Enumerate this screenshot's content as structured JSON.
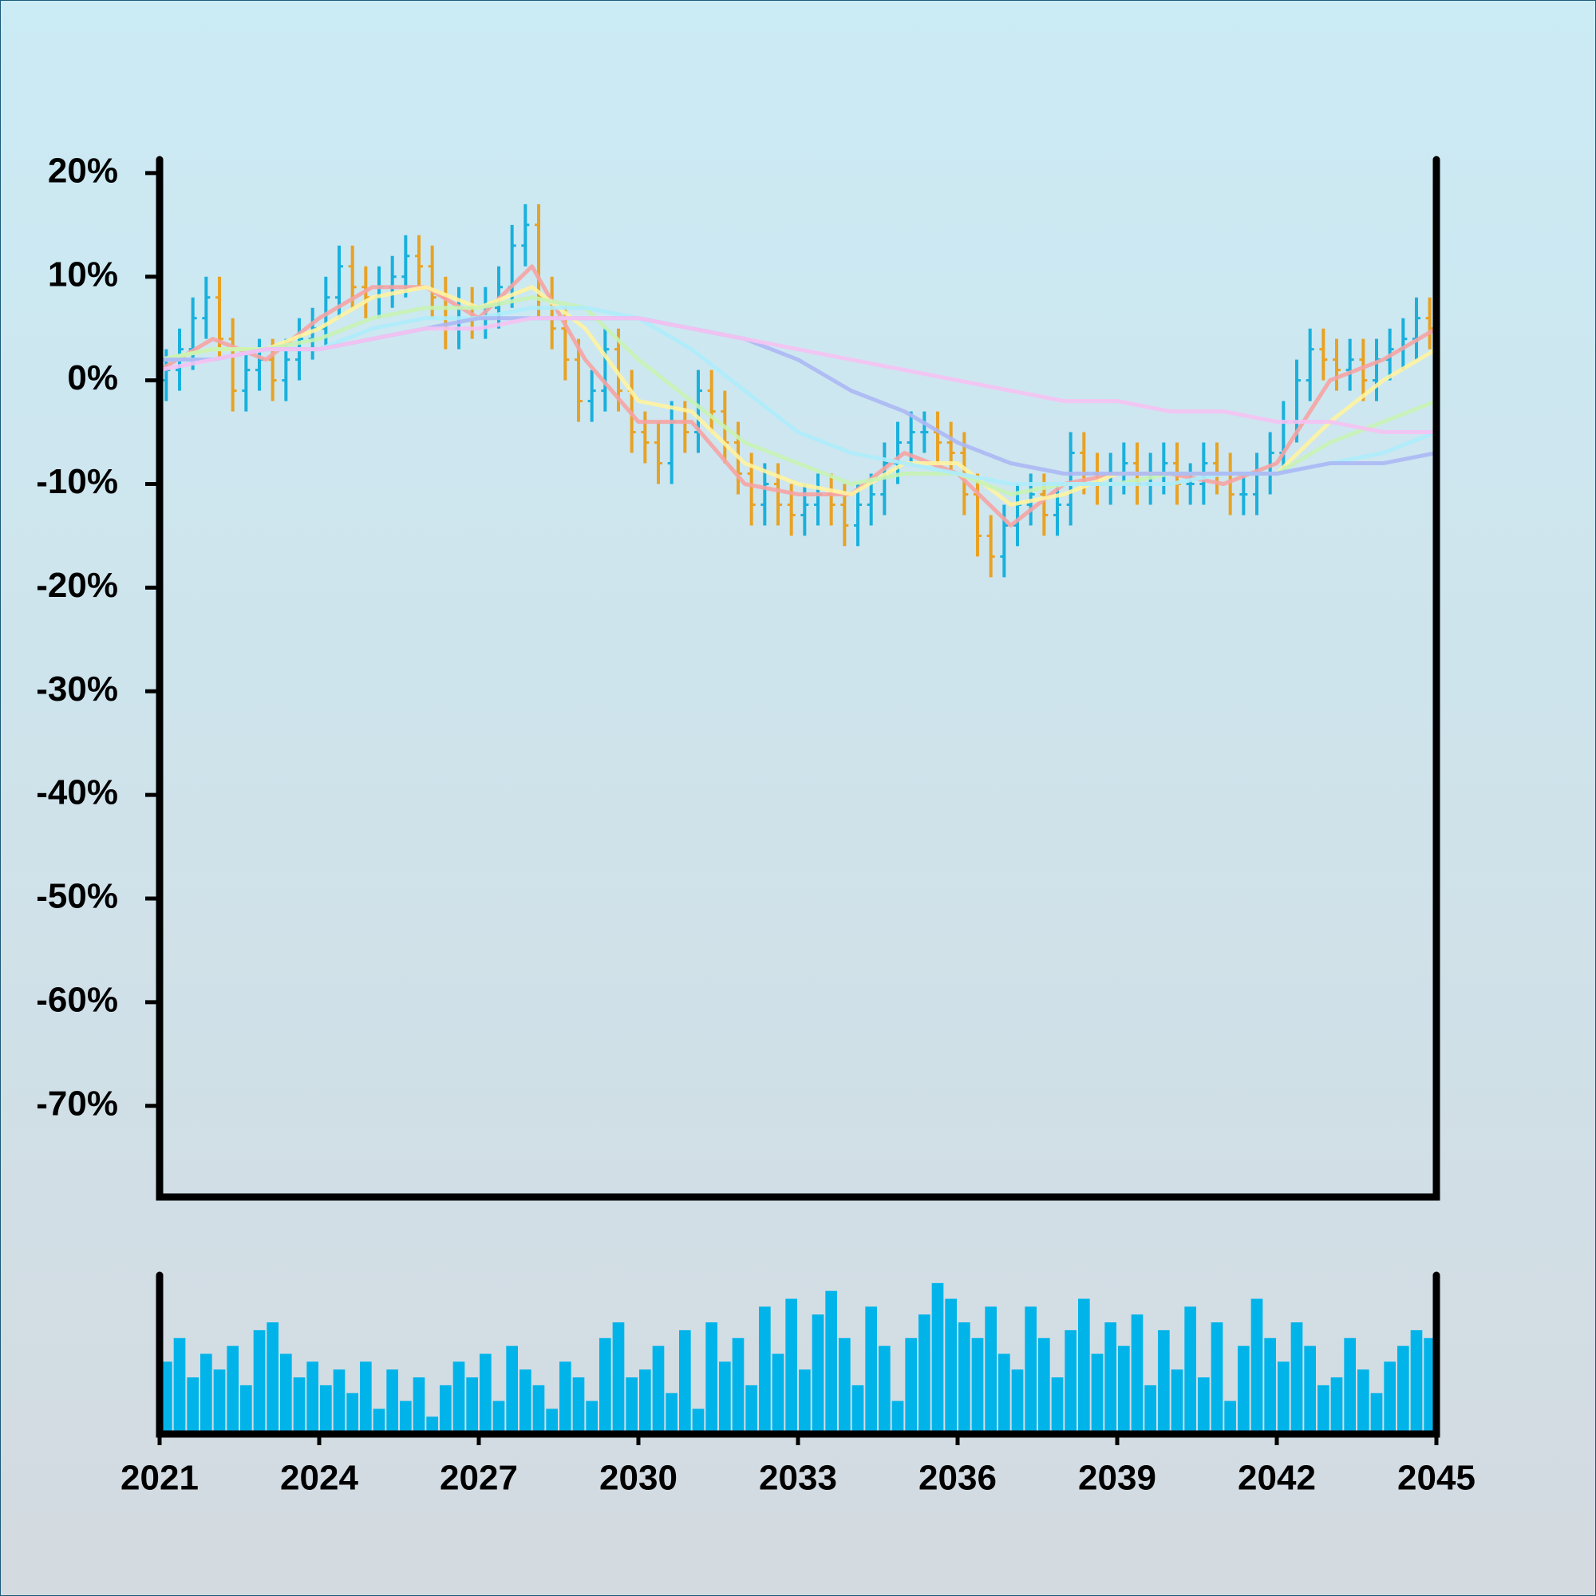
{
  "chart_data": {
    "type": "ohlc",
    "xlim": [
      2021,
      2045
    ],
    "xticks": [
      2021,
      2024,
      2027,
      2030,
      2033,
      2036,
      2039,
      2042,
      2045
    ],
    "ylim": [
      -78.8,
      21.3
    ],
    "yticks": [
      {
        "value": 20,
        "label": "20%"
      },
      {
        "value": 10,
        "label": "10%"
      },
      {
        "value": 0,
        "label": "0%"
      },
      {
        "value": -10,
        "label": "-10%"
      },
      {
        "value": -20,
        "label": "-20%"
      },
      {
        "value": -30,
        "label": "-30%"
      },
      {
        "value": -40,
        "label": "-40%"
      },
      {
        "value": -50,
        "label": "-50%"
      },
      {
        "value": -60,
        "label": "-60%"
      },
      {
        "value": -70,
        "label": "-70%"
      }
    ],
    "up_color": "#19b0dc",
    "down_color": "#e8a224",
    "volume_color": "#00b4ea",
    "volume_ylim": [
      0,
      100
    ],
    "x": [
      2021,
      2021.25,
      2021.5,
      2021.75,
      2022,
      2022.25,
      2022.5,
      2022.75,
      2023,
      2023.25,
      2023.5,
      2023.75,
      2024,
      2024.25,
      2024.5,
      2024.75,
      2025,
      2025.25,
      2025.5,
      2025.75,
      2026,
      2026.25,
      2026.5,
      2026.75,
      2027,
      2027.25,
      2027.5,
      2027.75,
      2028,
      2028.25,
      2028.5,
      2028.75,
      2029,
      2029.25,
      2029.5,
      2029.75,
      2030,
      2030.25,
      2030.5,
      2030.75,
      2031,
      2031.25,
      2031.5,
      2031.75,
      2032,
      2032.25,
      2032.5,
      2032.75,
      2033,
      2033.25,
      2033.5,
      2033.75,
      2034,
      2034.25,
      2034.5,
      2034.75,
      2035,
      2035.25,
      2035.5,
      2035.75,
      2036,
      2036.25,
      2036.5,
      2036.75,
      2037,
      2037.25,
      2037.5,
      2037.75,
      2038,
      2038.25,
      2038.5,
      2038.75,
      2039,
      2039.25,
      2039.5,
      2039.75,
      2040,
      2040.25,
      2040.5,
      2040.75,
      2041,
      2041.25,
      2041.5,
      2041.75,
      2042,
      2042.25,
      2042.5,
      2042.75,
      2043,
      2043.25,
      2043.5,
      2043.75,
      2044,
      2044.25,
      2044.5,
      2044.75
    ],
    "open": [
      0,
      1,
      3,
      6,
      8,
      4,
      -1,
      1,
      2,
      0,
      2,
      4,
      5,
      8,
      11,
      9,
      8,
      9,
      10,
      12,
      11,
      8,
      5,
      7,
      6,
      7,
      9,
      13,
      15,
      8,
      5,
      2,
      -2,
      -1,
      3,
      -1,
      -5,
      -6,
      -8,
      -4,
      -5,
      -1,
      -3,
      -6,
      -9,
      -12,
      -10,
      -12,
      -13,
      -12,
      -11,
      -12,
      -14,
      -12,
      -11,
      -8,
      -6,
      -5,
      -5,
      -6,
      -7,
      -11,
      -15,
      -17,
      -14,
      -12,
      -11,
      -13,
      -12,
      -7,
      -9,
      -10,
      -9,
      -8,
      -10,
      -9,
      -8,
      -10,
      -10,
      -8,
      -9,
      -11,
      -11,
      -9,
      -7,
      -4,
      0,
      3,
      2,
      1,
      2,
      0,
      2,
      3,
      4,
      6
    ],
    "high": [
      3,
      5,
      8,
      10,
      10,
      6,
      3,
      4,
      4,
      4,
      6,
      7,
      10,
      13,
      13,
      11,
      11,
      12,
      14,
      14,
      13,
      10,
      9,
      9,
      9,
      11,
      15,
      17,
      17,
      10,
      7,
      4,
      1,
      5,
      5,
      1,
      -3,
      -4,
      -2,
      -2,
      1,
      1,
      -1,
      -4,
      -7,
      -8,
      -8,
      -10,
      -10,
      -9,
      -9,
      -10,
      -10,
      -9,
      -6,
      -4,
      -3,
      -3,
      -3,
      -4,
      -5,
      -9,
      -13,
      -12,
      -10,
      -9,
      -9,
      -10,
      -5,
      -5,
      -7,
      -7,
      -6,
      -6,
      -7,
      -6,
      -6,
      -8,
      -6,
      -6,
      -7,
      -9,
      -7,
      -5,
      -2,
      2,
      5,
      5,
      4,
      4,
      4,
      4,
      5,
      6,
      8,
      8
    ],
    "low": [
      -2,
      -1,
      1,
      4,
      2,
      -3,
      -3,
      -1,
      -2,
      -2,
      0,
      2,
      3,
      6,
      7,
      6,
      6,
      7,
      8,
      9,
      6,
      3,
      3,
      4,
      4,
      5,
      7,
      11,
      6,
      3,
      0,
      -4,
      -4,
      -3,
      -3,
      -7,
      -8,
      -10,
      -10,
      -7,
      -7,
      -5,
      -8,
      -11,
      -14,
      -14,
      -14,
      -15,
      -15,
      -14,
      -14,
      -16,
      -16,
      -14,
      -13,
      -10,
      -8,
      -7,
      -8,
      -9,
      -13,
      -17,
      -19,
      -19,
      -16,
      -14,
      -15,
      -15,
      -14,
      -11,
      -12,
      -12,
      -11,
      -12,
      -12,
      -11,
      -12,
      -12,
      -12,
      -11,
      -13,
      -13,
      -13,
      -11,
      -9,
      -6,
      -2,
      0,
      -1,
      -1,
      -2,
      -2,
      0,
      1,
      2,
      3
    ],
    "close": [
      1,
      3,
      6,
      8,
      4,
      -1,
      1,
      2,
      0,
      2,
      4,
      5,
      8,
      11,
      9,
      8,
      9,
      10,
      12,
      11,
      8,
      5,
      7,
      6,
      7,
      9,
      13,
      15,
      8,
      5,
      2,
      -2,
      -1,
      3,
      -1,
      -5,
      -6,
      -8,
      -4,
      -5,
      -1,
      -3,
      -6,
      -9,
      -12,
      -10,
      -12,
      -13,
      -12,
      -11,
      -12,
      -14,
      -12,
      -11,
      -8,
      -6,
      -5,
      -5,
      -6,
      -7,
      -11,
      -15,
      -17,
      -14,
      -12,
      -11,
      -13,
      -12,
      -7,
      -9,
      -10,
      -9,
      -8,
      -10,
      -9,
      -8,
      -10,
      -10,
      -8,
      -9,
      -11,
      -11,
      -9,
      -7,
      -4,
      0,
      3,
      2,
      1,
      2,
      0,
      2,
      3,
      4,
      6,
      5
    ],
    "volume": [
      45,
      60,
      35,
      50,
      40,
      55,
      30,
      65,
      70,
      50,
      35,
      45,
      30,
      40,
      25,
      45,
      15,
      40,
      20,
      35,
      10,
      30,
      45,
      35,
      50,
      20,
      55,
      40,
      30,
      15,
      45,
      35,
      20,
      60,
      70,
      35,
      40,
      55,
      25,
      65,
      15,
      70,
      45,
      60,
      30,
      80,
      50,
      85,
      40,
      75,
      90,
      60,
      30,
      80,
      55,
      20,
      60,
      75,
      95,
      85,
      70,
      60,
      80,
      50,
      40,
      80,
      60,
      35,
      65,
      85,
      50,
      70,
      55,
      75,
      30,
      65,
      40,
      80,
      35,
      70,
      20,
      55,
      85,
      60,
      45,
      70,
      55,
      30,
      35,
      60,
      40,
      25,
      45,
      55,
      65,
      60
    ],
    "ma_x": [
      2021,
      2022,
      2023,
      2024,
      2025,
      2026,
      2027,
      2028,
      2029,
      2030,
      2031,
      2032,
      2033,
      2034,
      2035,
      2036,
      2037,
      2038,
      2039,
      2040,
      2041,
      2042,
      2043,
      2044,
      2045
    ],
    "moving_averages": [
      {
        "color": "#f6a3a3",
        "values": [
          1,
          4,
          2,
          6,
          9,
          9,
          6,
          11,
          2,
          -4,
          -4,
          -10,
          -11,
          -11,
          -7,
          -9,
          -14,
          -10,
          -9,
          -9,
          -10,
          -8,
          0,
          2,
          5
        ]
      },
      {
        "color": "#fff3a0",
        "values": [
          2,
          3,
          3,
          5,
          8,
          9,
          7,
          9,
          5,
          -2,
          -3,
          -8,
          -10,
          -11,
          -8,
          -8,
          -12,
          -11,
          -9,
          -9,
          -9,
          -9,
          -4,
          0,
          3
        ]
      },
      {
        "color": "#c8f3b4",
        "values": [
          2,
          3,
          3,
          4,
          6,
          7,
          7,
          8,
          7,
          2,
          -2,
          -6,
          -8,
          -10,
          -9,
          -9,
          -11,
          -10,
          -10,
          -9,
          -9,
          -9,
          -6,
          -4,
          -2
        ]
      },
      {
        "color": "#aeecfb",
        "values": [
          2,
          2,
          3,
          3,
          5,
          6,
          6,
          7,
          7,
          6,
          3,
          -1,
          -5,
          -7,
          -8,
          -9,
          -10,
          -10,
          -10,
          -10,
          -9,
          -9,
          -8,
          -7,
          -5
        ]
      },
      {
        "color": "#acb8f4",
        "values": [
          2,
          2,
          3,
          3,
          4,
          5,
          6,
          6,
          6,
          6,
          5,
          4,
          2,
          -1,
          -3,
          -6,
          -8,
          -9,
          -9,
          -9,
          -9,
          -9,
          -8,
          -8,
          -7
        ]
      },
      {
        "color": "#f6c2f2",
        "values": [
          1,
          2,
          3,
          3,
          4,
          5,
          5,
          6,
          6,
          6,
          5,
          4,
          3,
          2,
          1,
          0,
          -1,
          -2,
          -2,
          -3,
          -3,
          -4,
          -4,
          -5,
          -5
        ]
      }
    ]
  }
}
